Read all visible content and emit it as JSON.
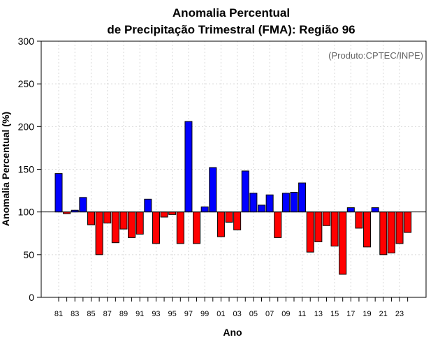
{
  "chart_data": {
    "type": "bar",
    "title_line1": "Anomalia Percentual",
    "title_line2": "de Precipitação Trimestral (FMA): Região 96",
    "credit": "(Produto:CPTEC/INPE)",
    "xlabel": "Ano",
    "ylabel": "Anomalia Percentual (%)",
    "ylim": [
      0,
      300
    ],
    "yticks": [
      0,
      50,
      100,
      150,
      200,
      250,
      300
    ],
    "baseline": 100,
    "grid": true,
    "colors": {
      "above": "#0000ff",
      "below": "#ff0000"
    },
    "categories": [
      "81",
      "82",
      "83",
      "84",
      "85",
      "86",
      "87",
      "88",
      "89",
      "90",
      "91",
      "92",
      "93",
      "94",
      "95",
      "96",
      "97",
      "98",
      "99",
      "00",
      "01",
      "02",
      "03",
      "04",
      "05",
      "06",
      "07",
      "08",
      "09",
      "10",
      "11",
      "12",
      "13",
      "14",
      "15",
      "16",
      "17",
      "18",
      "19",
      "20",
      "21",
      "22",
      "23",
      "24"
    ],
    "xtick_labels": [
      "81",
      "83",
      "85",
      "87",
      "89",
      "91",
      "93",
      "95",
      "97",
      "99",
      "01",
      "03",
      "05",
      "07",
      "09",
      "11",
      "13",
      "15",
      "17",
      "19",
      "21",
      "23"
    ],
    "values": [
      145,
      98,
      102,
      117,
      85,
      50,
      87,
      64,
      80,
      70,
      74,
      115,
      63,
      94,
      97,
      63,
      206,
      63,
      106,
      152,
      71,
      88,
      79,
      148,
      122,
      108,
      120,
      70,
      122,
      123,
      134,
      53,
      65,
      84,
      60,
      27,
      105,
      81,
      59,
      105,
      50,
      52,
      63,
      76
    ]
  }
}
